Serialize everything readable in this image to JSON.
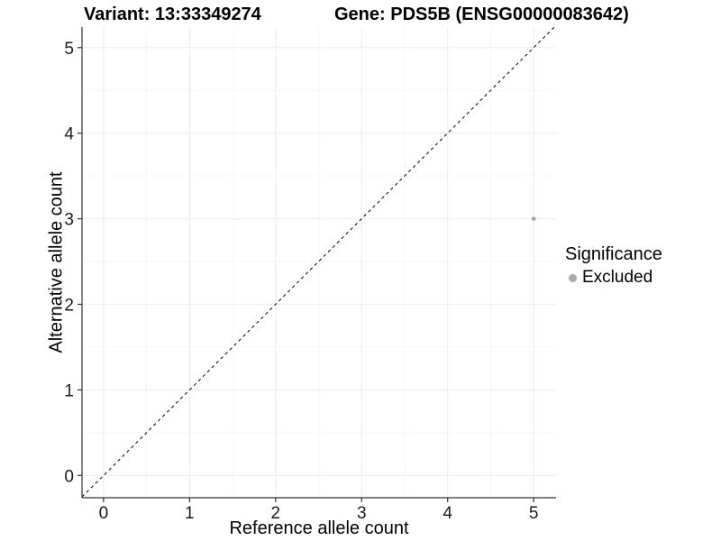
{
  "chart_data": {
    "type": "scatter",
    "title_left": "Variant: 13:33349274",
    "title_right": "Gene: PDS5B (ENSG00000083642)",
    "xlabel": "Reference allele count",
    "ylabel": "Alternative allele count",
    "xlim": [
      -0.25,
      5.26
    ],
    "ylim": [
      -0.26,
      5.24
    ],
    "xticks": [
      0,
      1,
      2,
      3,
      4,
      5
    ],
    "yticks": [
      0,
      1,
      2,
      3,
      4,
      5
    ],
    "xticks_minor": [
      0.5,
      1.5,
      2.5,
      3.5,
      4.5
    ],
    "yticks_minor": [
      0.5,
      1.5,
      2.5,
      3.5,
      4.5
    ],
    "grid": "major+minor",
    "identity_line": {
      "slope": 1,
      "intercept": 0,
      "style": "dashed",
      "color": "#000000"
    },
    "points": [
      {
        "x": 5,
        "y": 3,
        "series": "Excluded",
        "color": "#a9a9a9"
      }
    ],
    "legend": {
      "title": "Significance",
      "position": "right",
      "items": [
        {
          "label": "Excluded",
          "color": "#a9a9a9"
        }
      ]
    }
  },
  "colors": {
    "background": "#ffffff",
    "grid_major": "#ebebeb",
    "grid_minor": "#f6f6f6",
    "axis_line": "#333333",
    "tick_mark": "#333333",
    "tick_label": "#1a1a1a",
    "point": "#a9a9a9"
  }
}
